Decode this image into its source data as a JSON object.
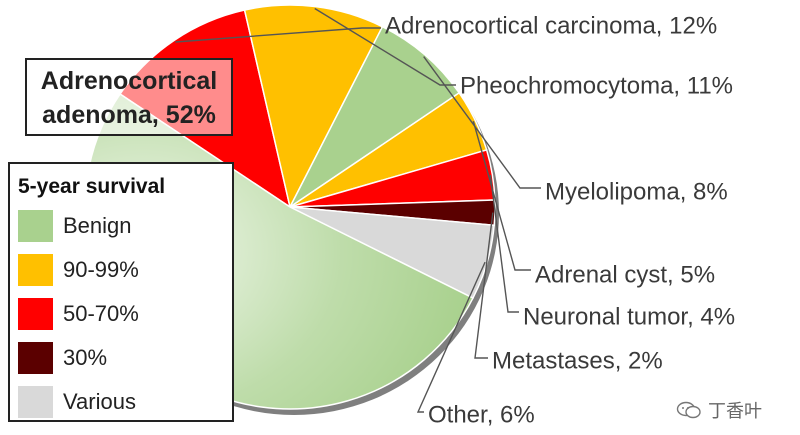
{
  "chart_data": {
    "type": "pie",
    "title": "",
    "slices": [
      {
        "label": "Adrenocortical adenoma",
        "value": 52,
        "color": "#a9d18e",
        "callout": "Adrenocortical adenoma, 52%"
      },
      {
        "label": "Adrenocortical carcinoma",
        "value": 12,
        "color": "#ff0000",
        "callout": "Adrenocortical carcinoma, 12%"
      },
      {
        "label": "Pheochromocytoma",
        "value": 11,
        "color": "#ffc000",
        "callout": "Pheochromocytoma, 11%"
      },
      {
        "label": "Myelolipoma",
        "value": 8,
        "color": "#a9d18e",
        "callout": "Myelolipoma, 8%"
      },
      {
        "label": "Adrenal cyst",
        "value": 5,
        "color": "#ffc000",
        "callout": "Adrenal cyst, 5%"
      },
      {
        "label": "Neuronal tumor",
        "value": 4,
        "color": "#ff0000",
        "callout": "Neuronal tumor, 4%"
      },
      {
        "label": "Metastases",
        "value": 2,
        "color": "#5b0000",
        "callout": "Metastases, 2%"
      },
      {
        "label": "Other",
        "value": 6,
        "color": "#d9d9d9",
        "callout": "Other, 6%"
      }
    ],
    "legend": {
      "title": "5-year survival",
      "placement": "left",
      "entries": [
        {
          "label": "Benign",
          "color": "#a9d18e"
        },
        {
          "label": "90-99%",
          "color": "#ffc000"
        },
        {
          "label": "50-70%",
          "color": "#ff0000"
        },
        {
          "label": "30%",
          "color": "#5b0000"
        },
        {
          "label": "Various",
          "color": "#d9d9d9"
        }
      ]
    },
    "major_label_lines": [
      "Adrenocortical",
      "adenoma, 52%"
    ]
  },
  "watermark": {
    "text": "丁香叶",
    "icon": "wechat-icon"
  }
}
